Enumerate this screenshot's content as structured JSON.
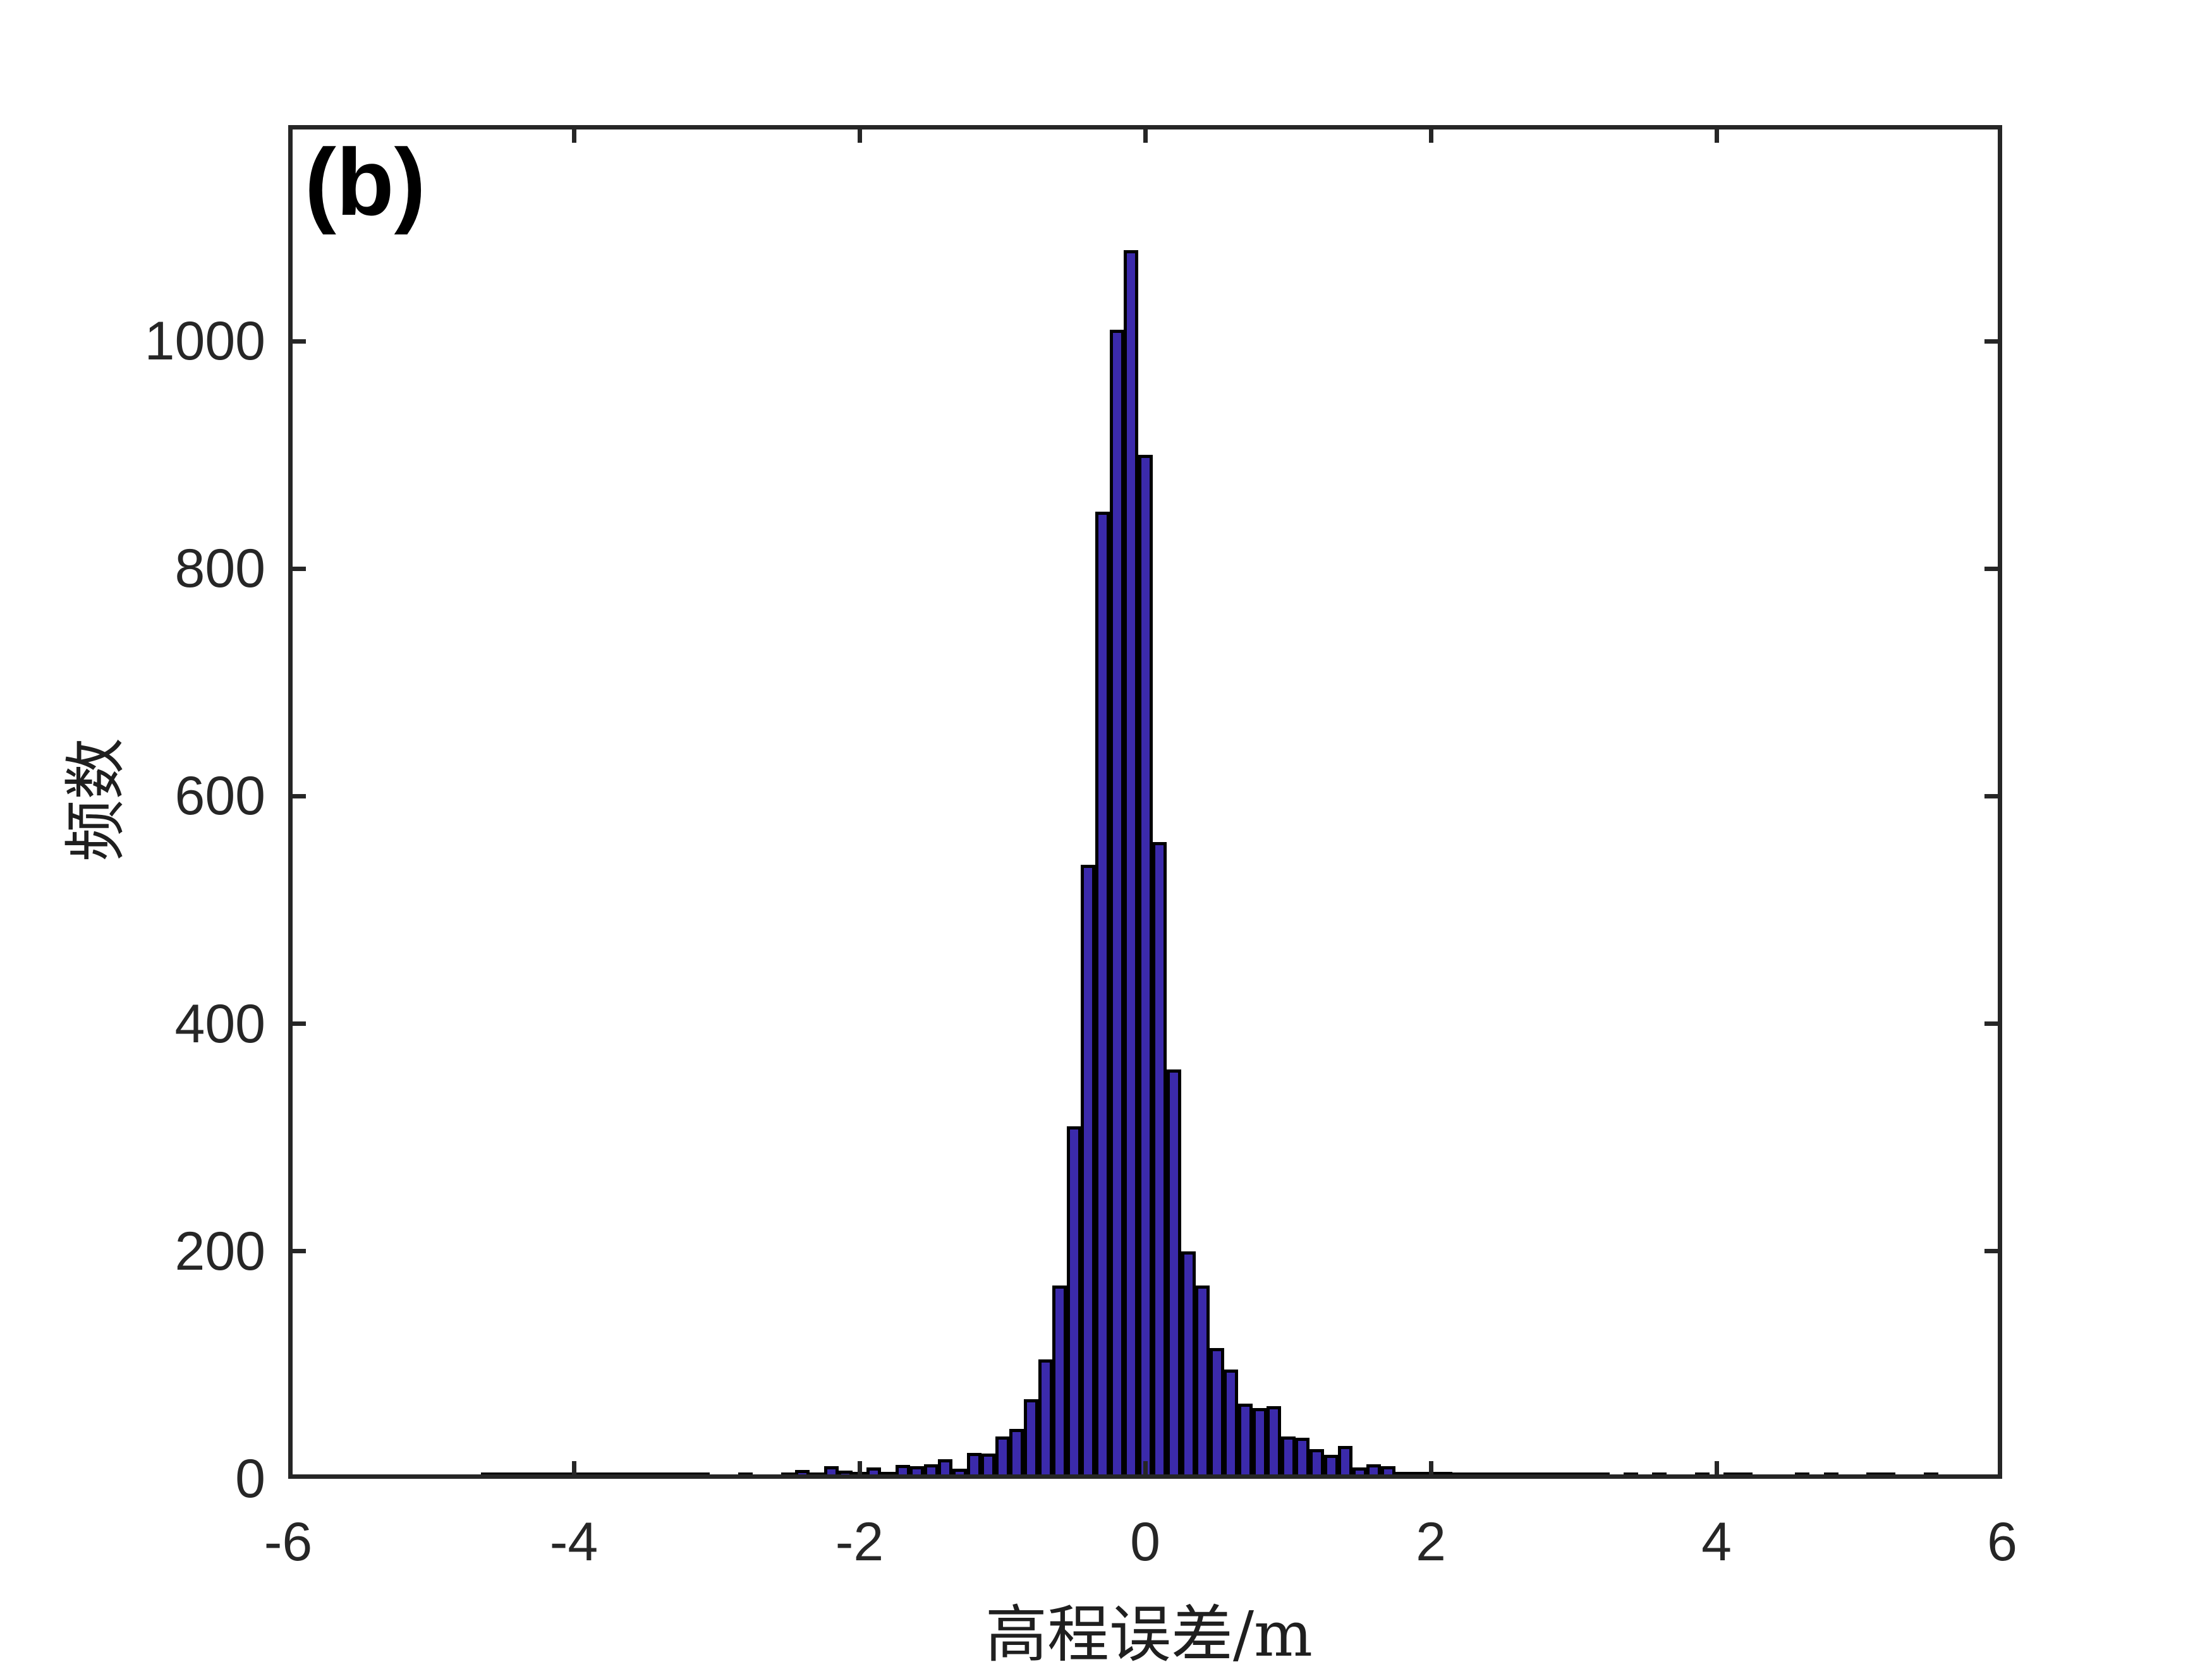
{
  "figure": {
    "panel_label": "(b)",
    "x_axis_title": "高程误差/m",
    "y_axis_title": "频数",
    "colors": {
      "bar_fill": "#3b2aab",
      "bar_edge": "#000000",
      "axis": "#262626",
      "background": "#ffffff"
    }
  },
  "chart_data": {
    "type": "bar",
    "subtype": "histogram",
    "title": "",
    "xlabel": "高程误差/m",
    "ylabel": "频数",
    "xlim": [
      -6,
      6
    ],
    "ylim": [
      0,
      1190
    ],
    "x_tick_labels": [
      "-6",
      "-4",
      "-2",
      "0",
      "2",
      "4",
      "6"
    ],
    "x_tick_values": [
      -6,
      -4,
      -2,
      0,
      2,
      4,
      6
    ],
    "y_tick_labels": [
      "0",
      "200",
      "400",
      "600",
      "800",
      "1000"
    ],
    "y_tick_values": [
      0,
      200,
      400,
      600,
      800,
      1000
    ],
    "grid": false,
    "legend": "none",
    "bin_width": 0.1,
    "bin_centers": [
      -4.6,
      -4.5,
      -4.4,
      -4.3,
      -4.2,
      -4.1,
      -4.0,
      -3.9,
      -3.8,
      -3.7,
      -3.6,
      -3.5,
      -3.4,
      -3.3,
      -3.2,
      -3.1,
      -2.8,
      -2.5,
      -2.4,
      -2.3,
      -2.2,
      -2.1,
      -2.0,
      -1.9,
      -1.8,
      -1.7,
      -1.6,
      -1.5,
      -1.4,
      -1.3,
      -1.2,
      -1.1,
      -1.0,
      -0.9,
      -0.8,
      -0.7,
      -0.6,
      -0.5,
      -0.4,
      -0.3,
      -0.2,
      -0.1,
      0.0,
      0.1,
      0.2,
      0.3,
      0.4,
      0.5,
      0.6,
      0.7,
      0.8,
      0.9,
      1.0,
      1.1,
      1.2,
      1.3,
      1.4,
      1.5,
      1.6,
      1.7,
      1.8,
      1.9,
      2.0,
      2.1,
      2.2,
      2.3,
      2.4,
      2.5,
      2.6,
      2.7,
      2.8,
      2.9,
      3.0,
      3.1,
      3.2,
      3.4,
      3.6,
      3.9,
      4.1,
      4.2,
      4.6,
      4.8,
      5.1,
      5.2,
      5.5
    ],
    "counts": [
      1,
      2,
      2,
      1,
      1,
      2,
      2,
      1,
      1,
      3,
      4,
      4,
      2,
      2,
      4,
      3,
      4,
      3,
      8,
      1,
      11,
      7,
      6,
      10,
      6,
      12,
      11,
      13,
      17,
      9,
      23,
      22,
      37,
      44,
      70,
      105,
      170,
      310,
      540,
      850,
      1010,
      1080,
      900,
      560,
      360,
      200,
      170,
      115,
      96,
      66,
      62,
      64,
      37,
      36,
      26,
      21,
      29,
      10,
      13,
      11,
      6,
      6,
      6,
      6,
      5,
      4,
      4,
      4,
      2,
      4,
      4,
      1,
      1,
      1,
      1,
      3,
      3,
      2,
      3,
      2,
      2,
      2,
      2,
      2,
      2
    ]
  }
}
